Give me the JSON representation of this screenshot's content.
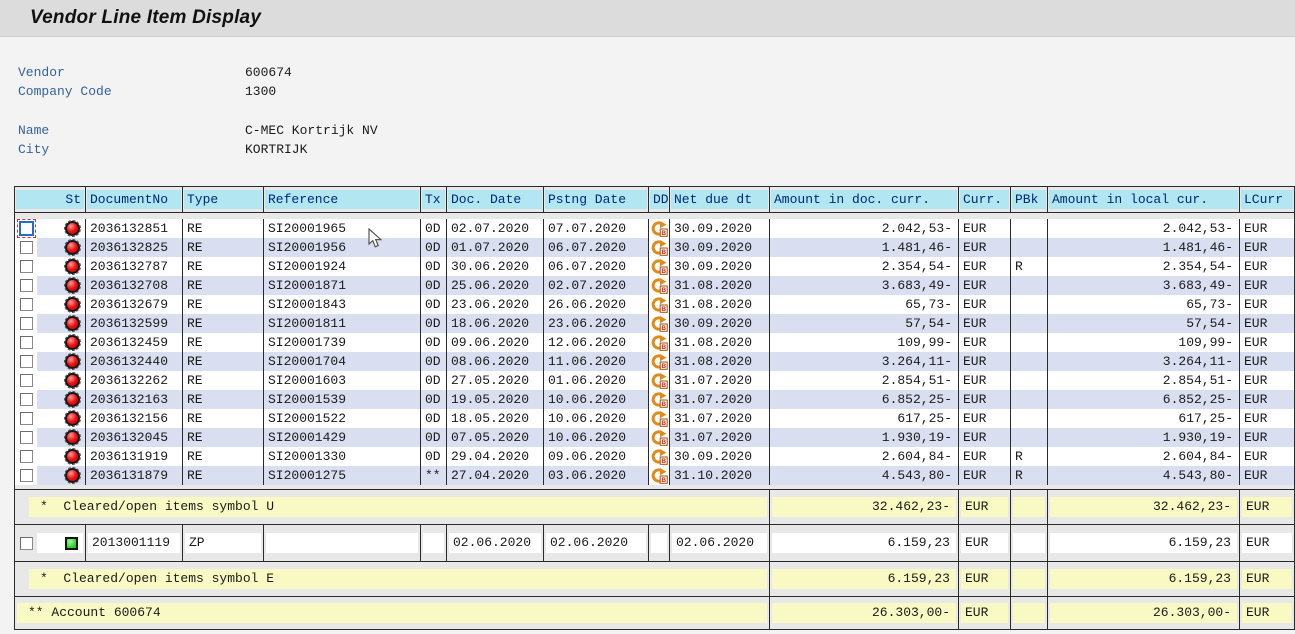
{
  "title": "Vendor Line Item Display",
  "info": {
    "fields": [
      {
        "label": "Vendor",
        "value": "600674",
        "gap_after": false
      },
      {
        "label": "Company Code",
        "value": "1300",
        "gap_after": true
      },
      {
        "label": "Name",
        "value": "C-MEC Kortrijk NV",
        "gap_after": false
      },
      {
        "label": "City",
        "value": "KORTRIJK",
        "gap_after": false
      }
    ]
  },
  "table": {
    "columns": [
      "St",
      "DocumentNo",
      "Type",
      "Reference",
      "Tx",
      "Doc. Date",
      "Pstng Date",
      "DD",
      "Net due dt",
      "Amount in doc. curr.",
      "Curr.",
      "PBk",
      "Amount in local cur.",
      "LCurr"
    ],
    "status_icon_open": "red-traffic-light",
    "status_icon_cleared": "green-square",
    "dd_icon_name": "dunning-branch-icon",
    "rows": [
      {
        "selected": true,
        "status": "open",
        "document_no": "2036132851",
        "type": "RE",
        "reference": "SI20001965",
        "tx": "0D",
        "doc_date": "02.07.2020",
        "pstng_date": "07.07.2020",
        "dd_icon": true,
        "net_due_dt": "30.09.2020",
        "amount_doc": "2.042,53-",
        "curr": "EUR",
        "pbk": "",
        "amount_local": "2.042,53-",
        "lcurr": "EUR"
      },
      {
        "selected": false,
        "status": "open",
        "document_no": "2036132825",
        "type": "RE",
        "reference": "SI20001956",
        "tx": "0D",
        "doc_date": "01.07.2020",
        "pstng_date": "06.07.2020",
        "dd_icon": true,
        "net_due_dt": "30.09.2020",
        "amount_doc": "1.481,46-",
        "curr": "EUR",
        "pbk": "",
        "amount_local": "1.481,46-",
        "lcurr": "EUR"
      },
      {
        "selected": false,
        "status": "open",
        "document_no": "2036132787",
        "type": "RE",
        "reference": "SI20001924",
        "tx": "0D",
        "doc_date": "30.06.2020",
        "pstng_date": "06.07.2020",
        "dd_icon": true,
        "net_due_dt": "30.09.2020",
        "amount_doc": "2.354,54-",
        "curr": "EUR",
        "pbk": "R",
        "amount_local": "2.354,54-",
        "lcurr": "EUR"
      },
      {
        "selected": false,
        "status": "open",
        "document_no": "2036132708",
        "type": "RE",
        "reference": "SI20001871",
        "tx": "0D",
        "doc_date": "25.06.2020",
        "pstng_date": "02.07.2020",
        "dd_icon": true,
        "net_due_dt": "31.08.2020",
        "amount_doc": "3.683,49-",
        "curr": "EUR",
        "pbk": "",
        "amount_local": "3.683,49-",
        "lcurr": "EUR"
      },
      {
        "selected": false,
        "status": "open",
        "document_no": "2036132679",
        "type": "RE",
        "reference": "SI20001843",
        "tx": "0D",
        "doc_date": "23.06.2020",
        "pstng_date": "26.06.2020",
        "dd_icon": true,
        "net_due_dt": "31.08.2020",
        "amount_doc": "65,73-",
        "curr": "EUR",
        "pbk": "",
        "amount_local": "65,73-",
        "lcurr": "EUR"
      },
      {
        "selected": false,
        "status": "open",
        "document_no": "2036132599",
        "type": "RE",
        "reference": "SI20001811",
        "tx": "0D",
        "doc_date": "18.06.2020",
        "pstng_date": "23.06.2020",
        "dd_icon": true,
        "net_due_dt": "30.09.2020",
        "amount_doc": "57,54-",
        "curr": "EUR",
        "pbk": "",
        "amount_local": "57,54-",
        "lcurr": "EUR"
      },
      {
        "selected": false,
        "status": "open",
        "document_no": "2036132459",
        "type": "RE",
        "reference": "SI20001739",
        "tx": "0D",
        "doc_date": "09.06.2020",
        "pstng_date": "12.06.2020",
        "dd_icon": true,
        "net_due_dt": "31.08.2020",
        "amount_doc": "109,99-",
        "curr": "EUR",
        "pbk": "",
        "amount_local": "109,99-",
        "lcurr": "EUR"
      },
      {
        "selected": false,
        "status": "open",
        "document_no": "2036132440",
        "type": "RE",
        "reference": "SI20001704",
        "tx": "0D",
        "doc_date": "08.06.2020",
        "pstng_date": "11.06.2020",
        "dd_icon": true,
        "net_due_dt": "31.08.2020",
        "amount_doc": "3.264,11-",
        "curr": "EUR",
        "pbk": "",
        "amount_local": "3.264,11-",
        "lcurr": "EUR"
      },
      {
        "selected": false,
        "status": "open",
        "document_no": "2036132262",
        "type": "RE",
        "reference": "SI20001603",
        "tx": "0D",
        "doc_date": "27.05.2020",
        "pstng_date": "01.06.2020",
        "dd_icon": true,
        "net_due_dt": "31.07.2020",
        "amount_doc": "2.854,51-",
        "curr": "EUR",
        "pbk": "",
        "amount_local": "2.854,51-",
        "lcurr": "EUR"
      },
      {
        "selected": false,
        "status": "open",
        "document_no": "2036132163",
        "type": "RE",
        "reference": "SI20001539",
        "tx": "0D",
        "doc_date": "19.05.2020",
        "pstng_date": "10.06.2020",
        "dd_icon": true,
        "net_due_dt": "31.07.2020",
        "amount_doc": "6.852,25-",
        "curr": "EUR",
        "pbk": "",
        "amount_local": "6.852,25-",
        "lcurr": "EUR"
      },
      {
        "selected": false,
        "status": "open",
        "document_no": "2036132156",
        "type": "RE",
        "reference": "SI20001522",
        "tx": "0D",
        "doc_date": "18.05.2020",
        "pstng_date": "10.06.2020",
        "dd_icon": true,
        "net_due_dt": "31.07.2020",
        "amount_doc": "617,25-",
        "curr": "EUR",
        "pbk": "",
        "amount_local": "617,25-",
        "lcurr": "EUR"
      },
      {
        "selected": false,
        "status": "open",
        "document_no": "2036132045",
        "type": "RE",
        "reference": "SI20001429",
        "tx": "0D",
        "doc_date": "07.05.2020",
        "pstng_date": "10.06.2020",
        "dd_icon": true,
        "net_due_dt": "31.07.2020",
        "amount_doc": "1.930,19-",
        "curr": "EUR",
        "pbk": "",
        "amount_local": "1.930,19-",
        "lcurr": "EUR"
      },
      {
        "selected": false,
        "status": "open",
        "document_no": "2036131919",
        "type": "RE",
        "reference": "SI20001330",
        "tx": "0D",
        "doc_date": "29.04.2020",
        "pstng_date": "09.06.2020",
        "dd_icon": true,
        "net_due_dt": "30.09.2020",
        "amount_doc": "2.604,84-",
        "curr": "EUR",
        "pbk": "R",
        "amount_local": "2.604,84-",
        "lcurr": "EUR"
      },
      {
        "selected": false,
        "status": "open",
        "document_no": "2036131879",
        "type": "RE",
        "reference": "SI20001275",
        "tx": "**",
        "doc_date": "27.04.2020",
        "pstng_date": "03.06.2020",
        "dd_icon": true,
        "net_due_dt": "31.10.2020",
        "amount_doc": "4.543,80-",
        "curr": "EUR",
        "pbk": "R",
        "amount_local": "4.543,80-",
        "lcurr": "EUR"
      }
    ]
  },
  "sections": {
    "subtotal_u": {
      "prefix": "*",
      "label": "Cleared/open items symbol U",
      "amount_doc": "32.462,23-",
      "curr": "EUR",
      "pbk": "",
      "amount_local": "32.462,23-",
      "lcurr": "EUR"
    },
    "cleared_row": {
      "status": "cleared",
      "document_no": "2013001119",
      "type": "ZP",
      "reference": "",
      "tx": "",
      "doc_date": "02.06.2020",
      "pstng_date": "02.06.2020",
      "dd": "",
      "net_due_dt": "02.06.2020",
      "amount_doc": "6.159,23",
      "curr": "EUR",
      "pbk": "",
      "amount_local": "6.159,23",
      "lcurr": "EUR"
    },
    "subtotal_e": {
      "prefix": "*",
      "label": "Cleared/open items symbol E",
      "amount_doc": "6.159,23",
      "curr": "EUR",
      "pbk": "",
      "amount_local": "6.159,23",
      "lcurr": "EUR"
    },
    "account_total": {
      "prefix": "**",
      "label": "Account 600674",
      "amount_doc": "26.303,00-",
      "curr": "EUR",
      "pbk": "",
      "amount_local": "26.303,00-",
      "lcurr": "EUR"
    }
  },
  "colors": {
    "header_bg": "#b2e6f0",
    "header_text": "#00267d",
    "row_stripe": "#d9def0",
    "subtotal_highlight": "#f9f9c3",
    "status_open_red": "#ee1111",
    "status_cleared_green": "#28d228",
    "label_blue": "#35629f"
  }
}
